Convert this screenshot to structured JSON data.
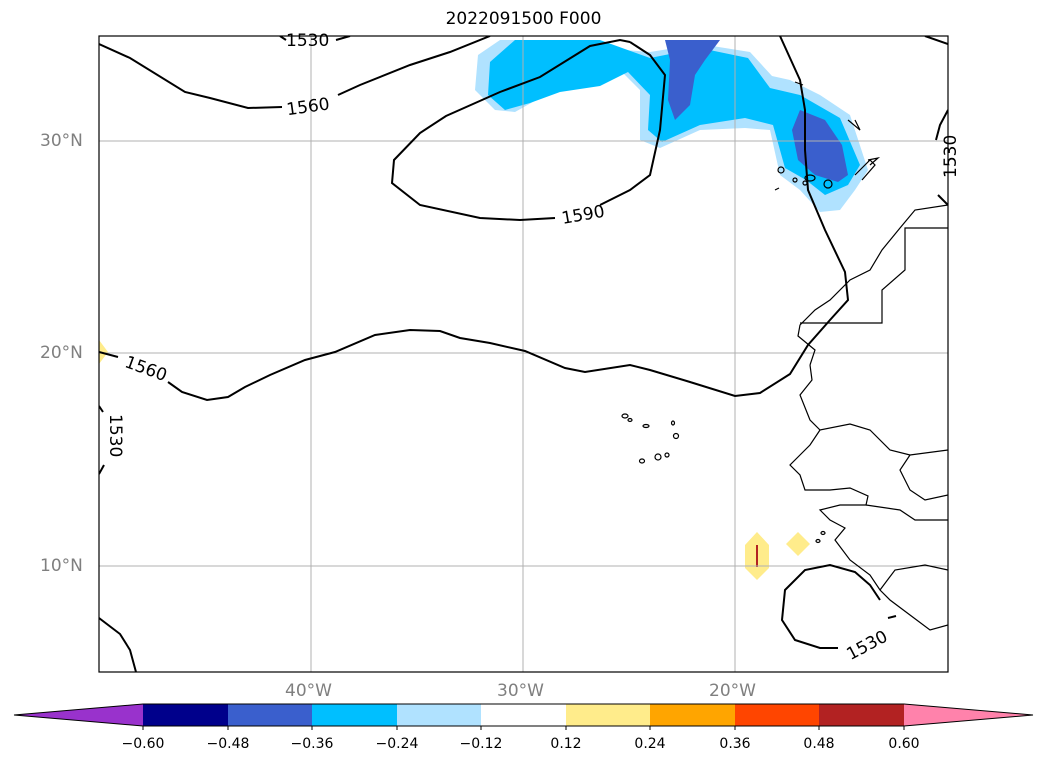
{
  "title": "2022091500 F000",
  "lat_labels": [
    "30°N",
    "20°N",
    "10°N"
  ],
  "lon_labels": [
    "40°W",
    "30°W",
    "20°W"
  ],
  "contour_labels": [
    "1530",
    "1560",
    "1590",
    "1560",
    "1530",
    "1530",
    "1530"
  ],
  "colorbar": {
    "ticks": [
      "−0.60",
      "−0.48",
      "−0.36",
      "−0.24",
      "−0.12",
      "0.12",
      "0.24",
      "0.36",
      "0.48",
      "0.60"
    ],
    "colors": [
      "#9932cc",
      "#00008b",
      "#3a5fcd",
      "#00bfff",
      "#b0e2ff",
      "#ffffff",
      "#ffec8b",
      "#ffa500",
      "#ff4500",
      "#b22222",
      "#ff82ab"
    ]
  },
  "colors": {
    "gridline": "#b0b0b0",
    "contour": "#000000",
    "coastline": "#000000"
  }
}
